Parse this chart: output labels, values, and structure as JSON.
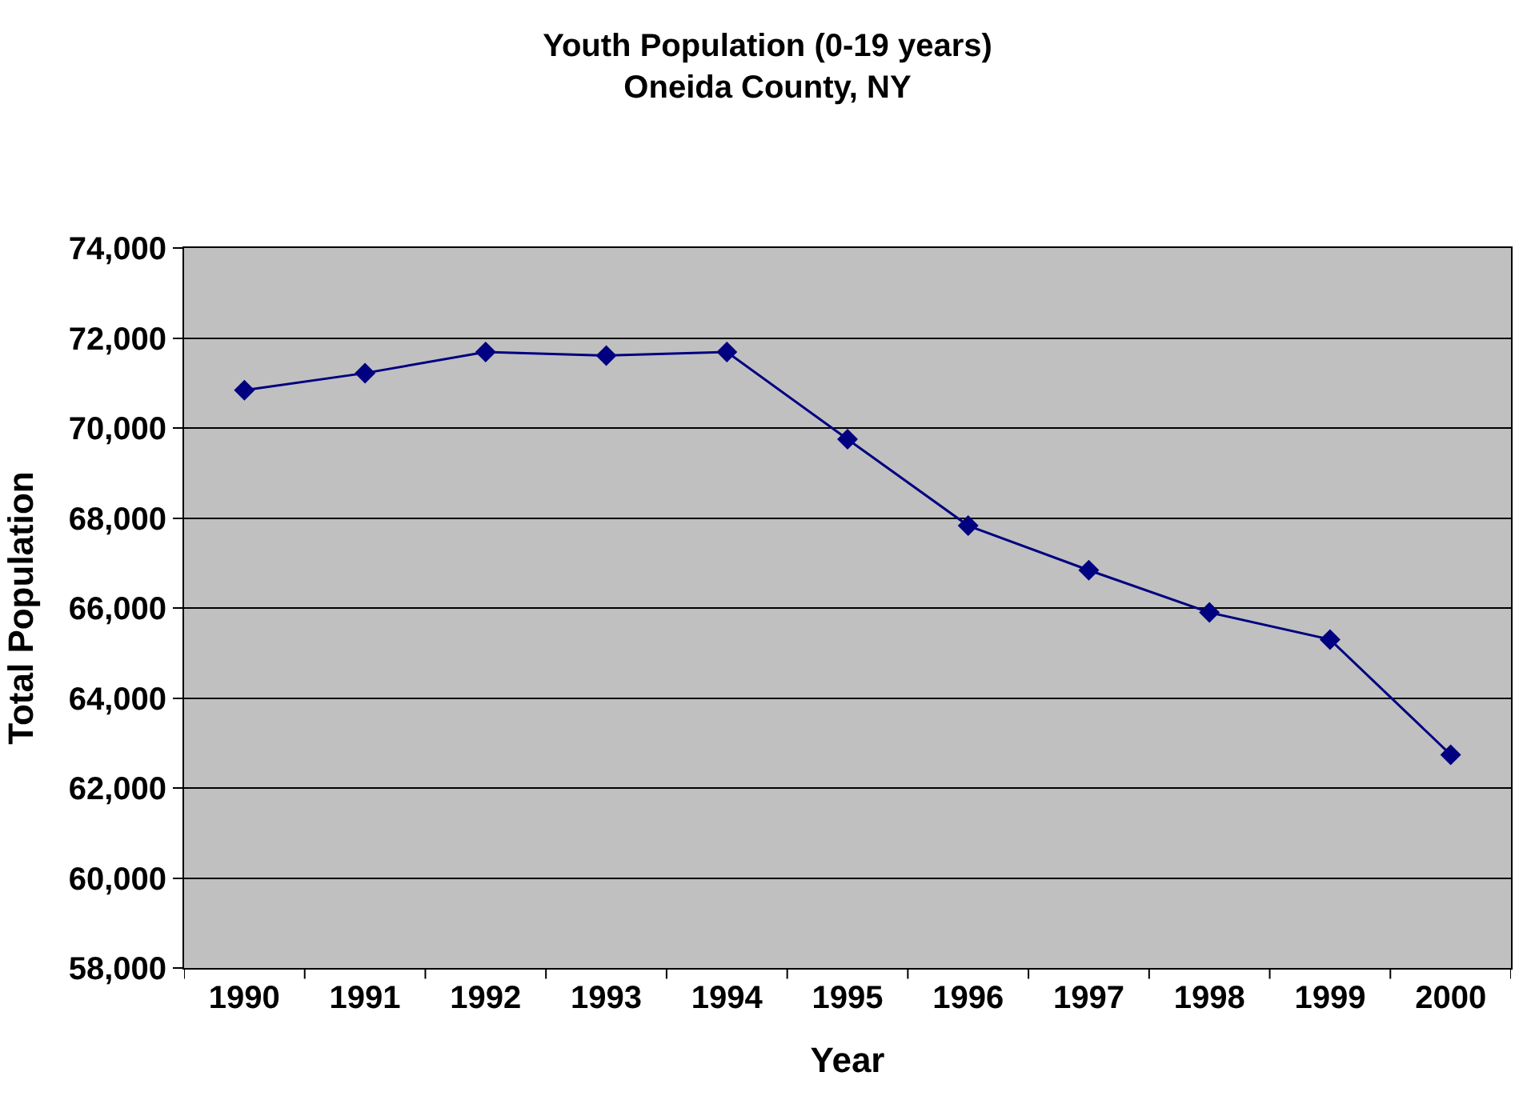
{
  "chart_data": {
    "type": "line",
    "title": "Youth Population (0-19 years)\nOneida County, NY",
    "xlabel": "Year",
    "ylabel": "Total Population",
    "categories": [
      "1990",
      "1991",
      "1992",
      "1993",
      "1994",
      "1995",
      "1996",
      "1997",
      "1998",
      "1999",
      "2000"
    ],
    "series": [
      {
        "color": "#000080",
        "values": [
          70840,
          71220,
          71690,
          71610,
          71690,
          69750,
          67830,
          66840,
          65900,
          65300,
          62740
        ]
      }
    ],
    "ylim": [
      58000,
      74000
    ],
    "yticks": [
      {
        "value": 58000,
        "label": "58,000"
      },
      {
        "value": 60000,
        "label": "60,000"
      },
      {
        "value": 62000,
        "label": "62,000"
      },
      {
        "value": 64000,
        "label": "64,000"
      },
      {
        "value": 66000,
        "label": "66,000"
      },
      {
        "value": 68000,
        "label": "68,000"
      },
      {
        "value": 70000,
        "label": "70,000"
      },
      {
        "value": 72000,
        "label": "72,000"
      },
      {
        "value": 74000,
        "label": "74,000"
      }
    ],
    "grid": "y",
    "marker": "diamond",
    "line_style": "solid"
  }
}
